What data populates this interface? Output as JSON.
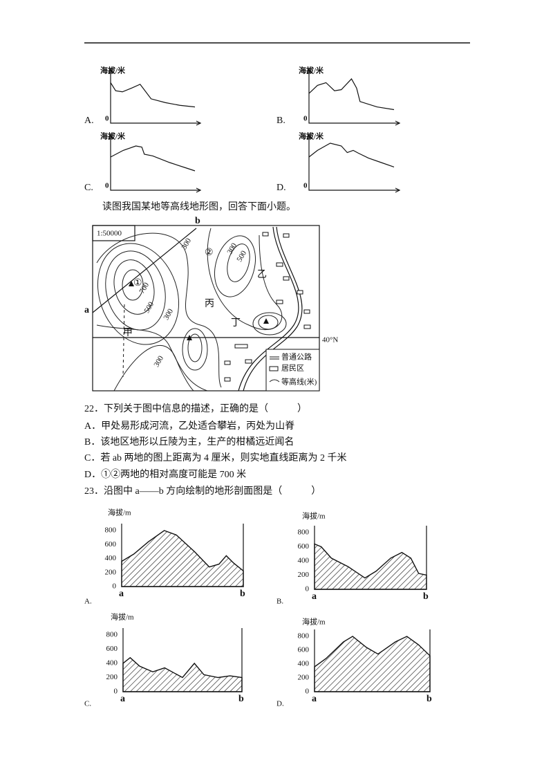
{
  "top_options": [
    {
      "label": "A.",
      "y_label": "海拔/米",
      "origin": 0
    },
    {
      "label": "B.",
      "y_label": "海拔/米",
      "origin": 0
    },
    {
      "label": "C.",
      "y_label": "海拔/米",
      "origin": 0
    },
    {
      "label": "D.",
      "y_label": "海拔/米",
      "origin": 0
    }
  ],
  "instruction": "读图我国某地等高线地形图，回答下面小题。",
  "map": {
    "scale": "1:50000",
    "point_a": "a",
    "point_b": "b",
    "contours": [
      "300",
      "700",
      "500",
      "300",
      "300",
      "500",
      "300"
    ],
    "marks": [
      "①",
      "②"
    ],
    "places": [
      "甲",
      "乙",
      "丙",
      "丁"
    ],
    "latitude": "40°N",
    "legend": [
      "普通公路",
      "居民区",
      "等高线(米)"
    ]
  },
  "q22": {
    "stem": "22．下列关于图中信息的描述，正确的是（　　　）",
    "options": [
      "A．甲处易形成河流，乙处适合攀岩，丙处为山脊",
      "B．该地区地形以丘陵为主，生产的柑橘远近闻名",
      "C．若 ab 两地的图上距离为 4 厘米，则实地直线距离为 2 千米",
      "D．①②两地的相对高度可能是 700 米"
    ]
  },
  "q23": {
    "stem": "23．沿图中 a——b 方向绘制的地形剖面图是（　　　）",
    "profiles": [
      {
        "label": "A.",
        "y_label": "海拔/m",
        "yticks": [
          800,
          600,
          400,
          200,
          0
        ],
        "start": "a",
        "end": "b"
      },
      {
        "label": "B.",
        "y_label": "海拔/m",
        "yticks": [
          800,
          600,
          400,
          200,
          0
        ],
        "start": "a",
        "end": "b"
      },
      {
        "label": "C.",
        "y_label": "海拔/m",
        "yticks": [
          800,
          600,
          400,
          200,
          0
        ],
        "start": "a",
        "end": "b"
      },
      {
        "label": "D.",
        "y_label": "海拔/m",
        "yticks": [
          800,
          600,
          400,
          200,
          0
        ],
        "start": "a",
        "end": "b"
      }
    ]
  }
}
